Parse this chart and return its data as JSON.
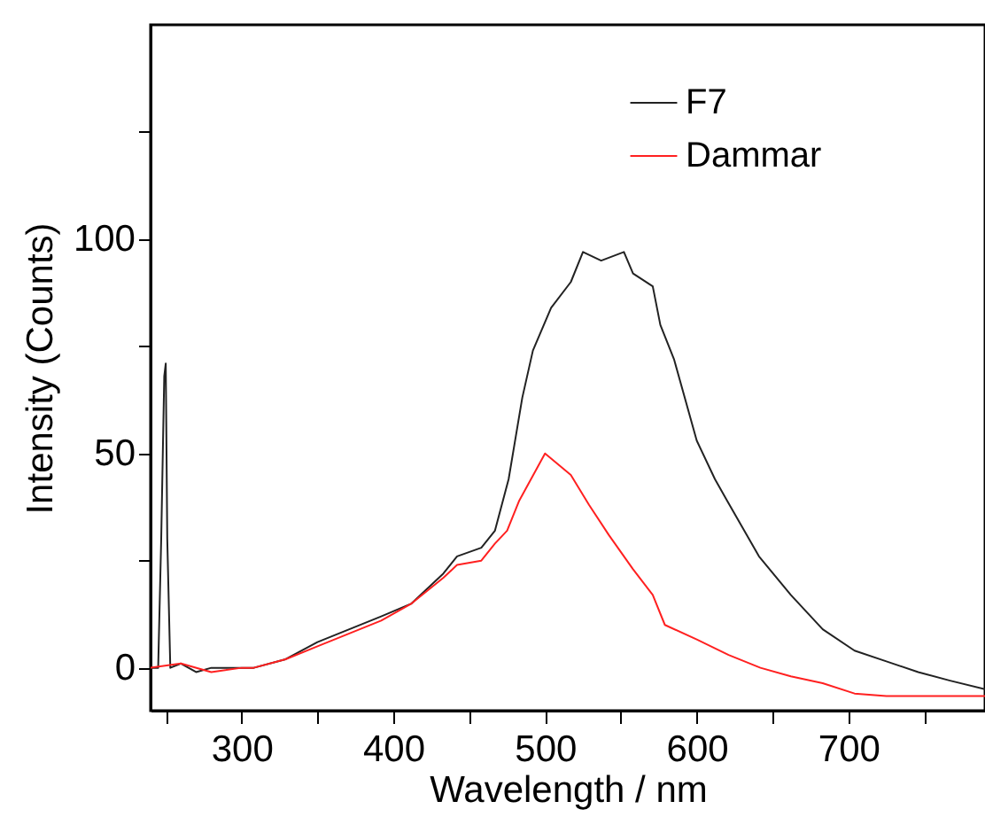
{
  "chart_data": {
    "type": "line",
    "xlabel": "Wavelength / nm",
    "ylabel": "Intensity (Counts)",
    "xlim": [
      240,
      790
    ],
    "ylim": [
      -10,
      150
    ],
    "xticks": [
      {
        "value": 250,
        "label": null
      },
      300,
      {
        "value": 350,
        "label": null
      },
      400,
      {
        "value": 450,
        "label": null
      },
      500,
      {
        "value": 550,
        "label": null
      },
      600,
      {
        "value": 650,
        "label": null
      },
      700,
      {
        "value": 750,
        "label": null
      }
    ],
    "yticks": [
      0,
      {
        "value": 25,
        "label": null
      },
      50,
      {
        "value": 75,
        "label": null
      },
      100,
      {
        "value": 125,
        "label": null
      }
    ],
    "legend": "top right",
    "grid": false,
    "series": [
      {
        "name": "F7",
        "color": "#222222",
        "x": [
          240,
          245,
          247,
          249,
          250,
          251,
          253,
          260,
          270,
          280,
          300,
          308,
          329,
          350,
          371,
          392,
          412,
          433,
          442,
          458,
          467,
          476,
          485,
          492,
          504,
          517,
          525,
          537,
          552,
          558,
          571,
          576,
          585,
          600,
          612,
          620,
          641,
          662,
          683,
          704,
          725,
          746,
          767,
          790
        ],
        "values": [
          0,
          0,
          30,
          68,
          71,
          30,
          0,
          1,
          -1,
          0,
          0,
          0,
          2,
          6,
          9,
          12,
          15,
          22,
          26,
          28,
          32,
          44,
          63,
          74,
          84,
          90,
          97,
          95,
          97,
          92,
          89,
          80,
          72,
          53,
          44,
          39,
          26,
          17,
          9,
          4,
          1.5,
          -1,
          -3,
          -5
        ]
      },
      {
        "name": "Dammar",
        "color": "#ff2020",
        "x": [
          240,
          260,
          280,
          300,
          308,
          329,
          350,
          371,
          392,
          412,
          433,
          442,
          458,
          467,
          475,
          483,
          500,
          517,
          529,
          542,
          558,
          571,
          579,
          600,
          621,
          642,
          662,
          683,
          704,
          725,
          746,
          767,
          790
        ],
        "values": [
          0,
          1,
          -1,
          0,
          0,
          2,
          5,
          8,
          11,
          15,
          21,
          24,
          25,
          29,
          32,
          39,
          50,
          45,
          38,
          31,
          23,
          17,
          10,
          6.6,
          3,
          0,
          -2,
          -3.6,
          -6,
          -6.6,
          -6.6,
          -6.6,
          -6.6
        ]
      }
    ]
  }
}
